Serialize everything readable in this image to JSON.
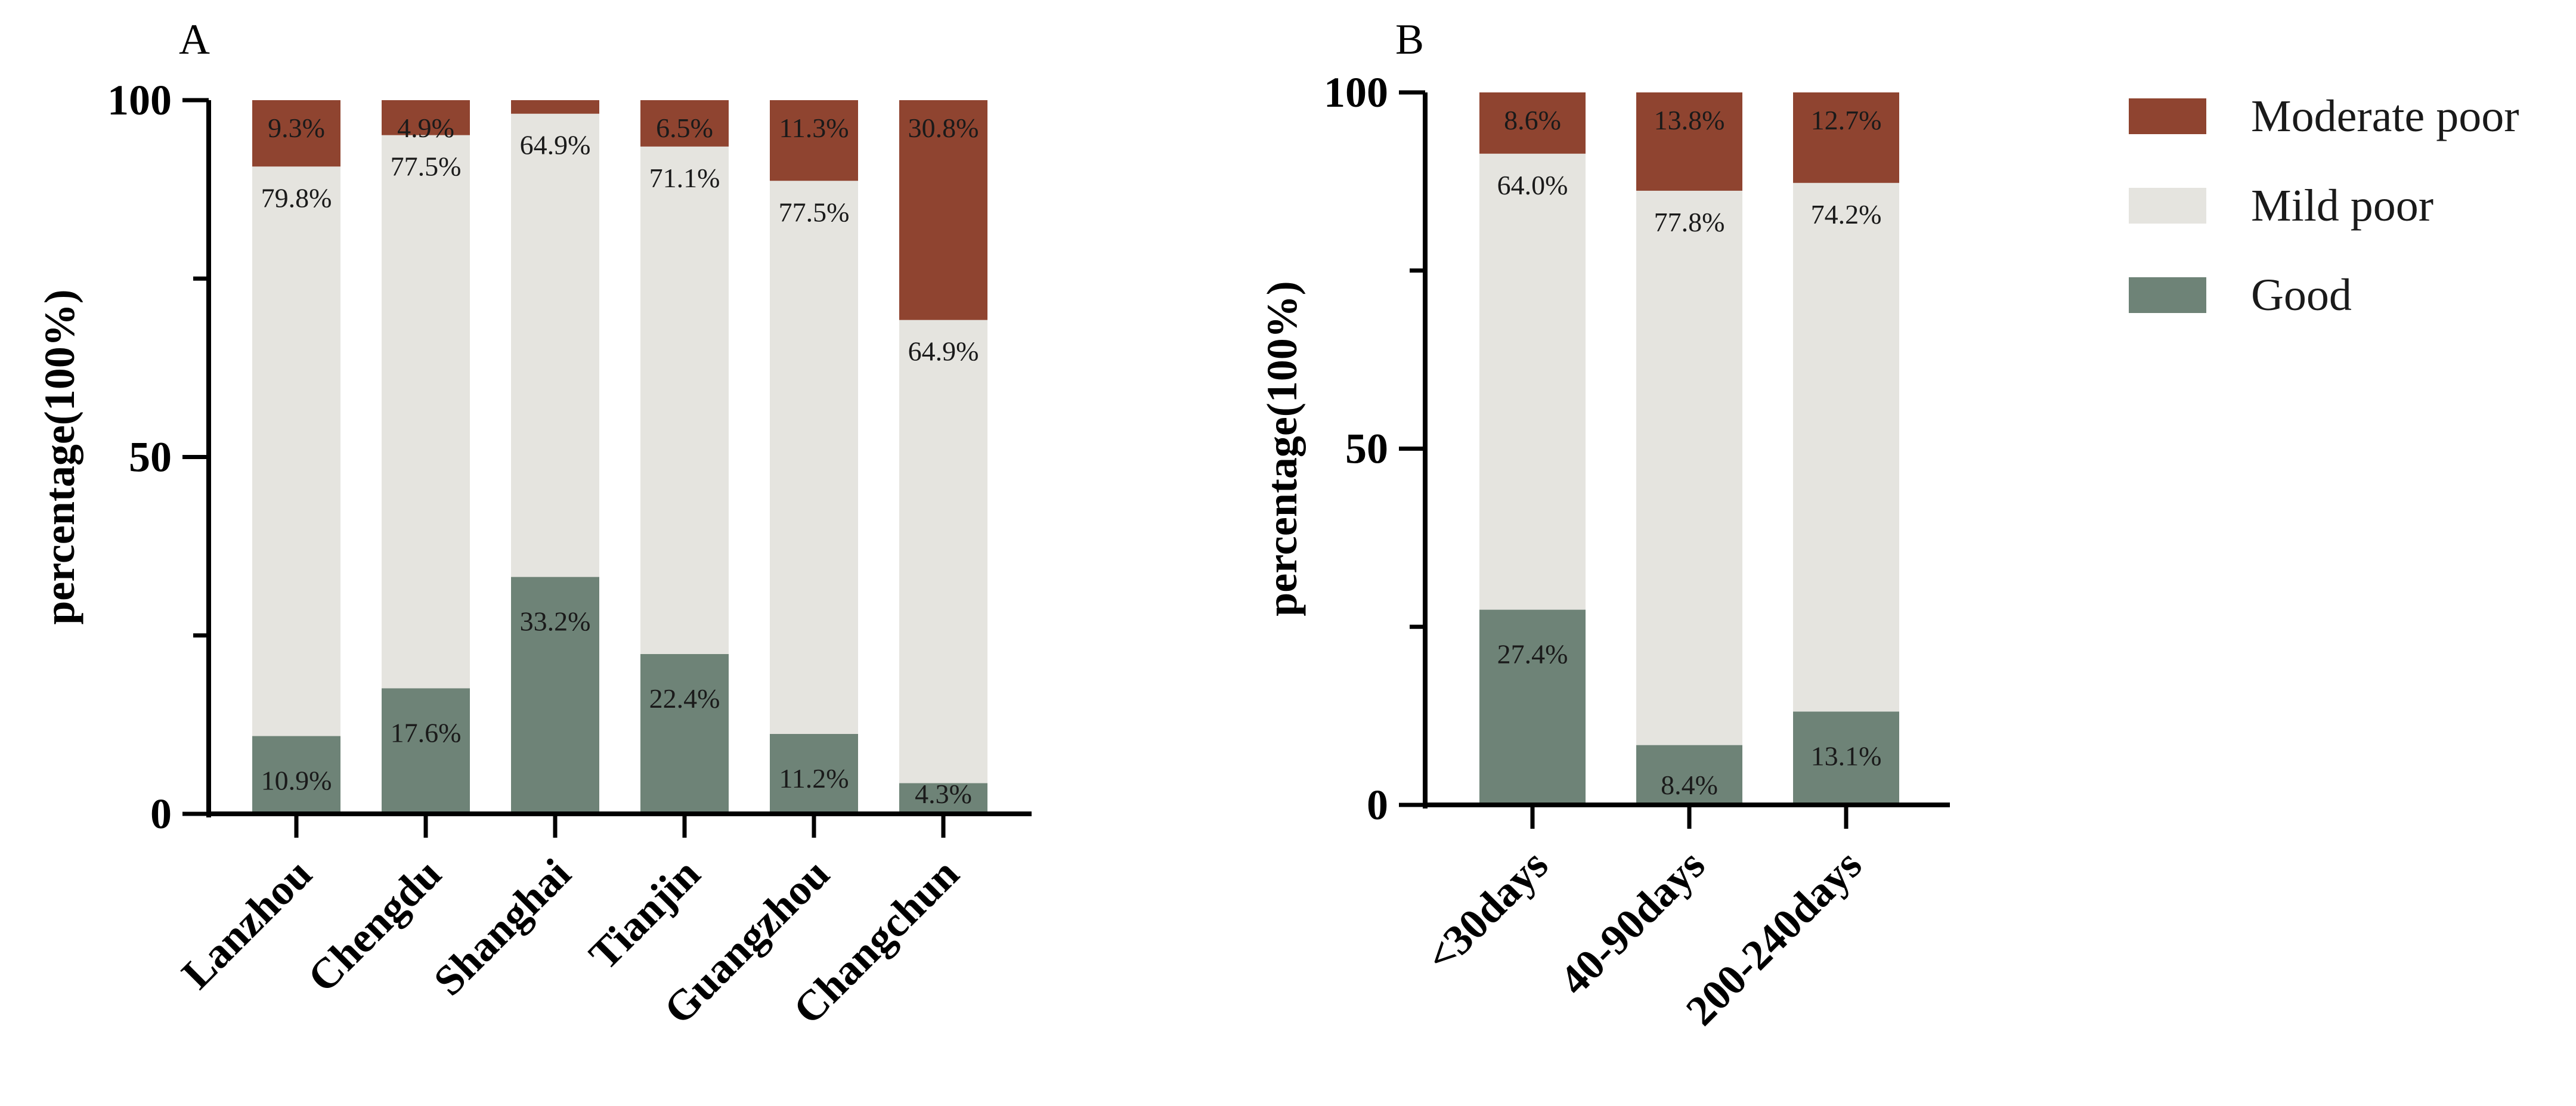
{
  "colors": {
    "good": "#6e8377",
    "mild_poor": "#e5e4df",
    "moderate_poor": "#8f4430",
    "axis": "#000000",
    "text": "#1a1a1a"
  },
  "legend": {
    "items": [
      {
        "key": "moderate_poor",
        "label": "Moderate poor"
      },
      {
        "key": "mild_poor",
        "label": "Mild poor"
      },
      {
        "key": "good",
        "label": "Good"
      }
    ]
  },
  "chart_data": [
    {
      "panel": "A",
      "type": "bar",
      "stacked": true,
      "ylabel": "percentage(100%)",
      "ylim": [
        0,
        100
      ],
      "yticks": [
        0,
        50,
        100
      ],
      "categories": [
        "Lanzhou",
        "Chengdu",
        "Shanghai",
        "Tianjin",
        "Guangzhou",
        "Changchun"
      ],
      "series": [
        {
          "name": "Good",
          "key": "good",
          "values": [
            10.9,
            17.6,
            33.2,
            22.4,
            11.2,
            4.3
          ],
          "labels": [
            "10.9%",
            "17.6%",
            "33.2%",
            "22.4%",
            "11.2%",
            "4.3%"
          ]
        },
        {
          "name": "Mild poor",
          "key": "mild_poor",
          "values": [
            79.8,
            77.5,
            64.9,
            71.1,
            77.5,
            64.9
          ],
          "labels": [
            "79.8%",
            "77.5%",
            "64.9%",
            "71.1%",
            "77.5%",
            "64.9%"
          ]
        },
        {
          "name": "Moderate poor",
          "key": "moderate_poor",
          "values": [
            9.3,
            4.9,
            1.9,
            6.5,
            11.3,
            30.8
          ],
          "labels": [
            "9.3%",
            "4.9%",
            "",
            "6.5%",
            "11.3%",
            "30.8%"
          ]
        }
      ]
    },
    {
      "panel": "B",
      "type": "bar",
      "stacked": true,
      "ylabel": "percentage(100%)",
      "ylim": [
        0,
        100
      ],
      "yticks": [
        0,
        50,
        100
      ],
      "categories": [
        "<30days",
        "40-90days",
        "200-240days"
      ],
      "series": [
        {
          "name": "Good",
          "key": "good",
          "values": [
            27.4,
            8.4,
            13.1
          ],
          "labels": [
            "27.4%",
            "8.4%",
            "13.1%"
          ]
        },
        {
          "name": "Mild poor",
          "key": "mild_poor",
          "values": [
            64.0,
            77.8,
            74.2
          ],
          "labels": [
            "64.0%",
            "77.8%",
            "74.2%"
          ]
        },
        {
          "name": "Moderate poor",
          "key": "moderate_poor",
          "values": [
            8.6,
            13.8,
            12.7
          ],
          "labels": [
            "8.6%",
            "13.8%",
            "12.7%"
          ]
        }
      ]
    }
  ]
}
